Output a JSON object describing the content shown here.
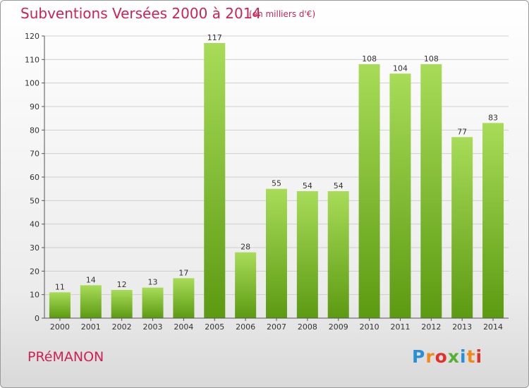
{
  "header": {
    "title": "Subventions Versées 2000 à 2014",
    "subtitle": "(en milliers d'€)"
  },
  "footer": {
    "place": "PRéMANON",
    "logo": "Proxiti",
    "logo_letters": [
      "P",
      "r",
      "o",
      "x",
      "i",
      "t",
      "i"
    ]
  },
  "colors": {
    "title": "#cc2255",
    "bar_light": "#a8dc58",
    "bar_dark": "#5c9a12",
    "grid": "#cfcfcf"
  },
  "chart_data": {
    "type": "bar",
    "title": "Subventions Versées 2000 à 2014",
    "subtitle": "(en milliers d'€)",
    "xlabel": "",
    "ylabel": "",
    "categories": [
      "2000",
      "2001",
      "2002",
      "2003",
      "2004",
      "2005",
      "2006",
      "2007",
      "2008",
      "2009",
      "2010",
      "2011",
      "2012",
      "2013",
      "2014"
    ],
    "values": [
      11,
      14,
      12,
      13,
      17,
      117,
      28,
      55,
      54,
      54,
      108,
      104,
      108,
      77,
      83
    ],
    "ylim": [
      0,
      120
    ],
    "yticks": [
      0,
      10,
      20,
      30,
      40,
      50,
      60,
      70,
      80,
      90,
      100,
      110,
      120
    ],
    "grid": true,
    "legend": "none"
  }
}
